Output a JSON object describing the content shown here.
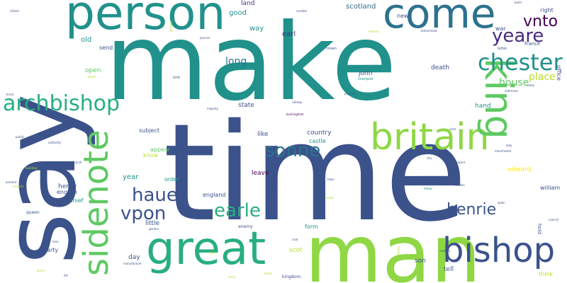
{
  "words": [
    {
      "key": "make",
      "text": "make",
      "color": "#21918c"
    },
    {
      "key": "time",
      "text": "time",
      "color": "#3b528b"
    },
    {
      "key": "say",
      "text": "say",
      "color": "#3b528b"
    },
    {
      "key": "man",
      "text": "man",
      "color": "#8fd744"
    },
    {
      "key": "person",
      "text": "person",
      "color": "#21918c"
    },
    {
      "key": "come",
      "text": "come",
      "color": "#2c728e"
    },
    {
      "key": "great",
      "text": "great",
      "color": "#28ae80"
    },
    {
      "key": "britain",
      "text": "britain",
      "color": "#8fd744"
    },
    {
      "key": "king",
      "text": "king",
      "color": "#5ec962"
    },
    {
      "key": "sidenote",
      "text": "sidenote",
      "color": "#5ec962"
    },
    {
      "key": "bishop",
      "text": "bishop",
      "color": "#3b528b"
    },
    {
      "key": "chester",
      "text": "chester",
      "color": "#21918c"
    },
    {
      "key": "archbishop",
      "text": "archbishop",
      "color": "#28ae80"
    },
    {
      "key": "yeare",
      "text": "yeare",
      "color": "#472d7b"
    },
    {
      "key": "vnto",
      "text": "vnto",
      "color": "#440154"
    },
    {
      "key": "sonne",
      "text": "sonne",
      "color": "#2c728e"
    },
    {
      "key": "haue",
      "text": "haue",
      "color": "#3b528b"
    },
    {
      "key": "vpon",
      "text": "vpon",
      "color": "#3b528b"
    },
    {
      "key": "earle",
      "text": "earle",
      "color": "#28ae80"
    },
    {
      "key": "henrie",
      "text": "henrie",
      "color": "#3b528b"
    },
    {
      "key": "house",
      "text": "house",
      "color": "#5ec962"
    },
    {
      "key": "place",
      "text": "place",
      "color": "#b5de2b"
    },
    {
      "key": "long",
      "text": "long",
      "color": "#2c728e"
    },
    {
      "key": "scotland",
      "text": "scotland",
      "color": "#31688e"
    },
    {
      "key": "way",
      "text": "way",
      "color": "#21918c"
    },
    {
      "key": "earl",
      "text": "earl",
      "color": "#472d7b"
    },
    {
      "key": "good",
      "text": "good",
      "color": "#21918c"
    },
    {
      "key": "land",
      "text": "land",
      "color": "#472d7b"
    },
    {
      "key": "old",
      "text": "old",
      "color": "#21918c"
    },
    {
      "key": "send",
      "text": "send",
      "color": "#3b528b"
    },
    {
      "key": "open",
      "text": "open",
      "color": "#5ec962"
    },
    {
      "key": "john",
      "text": "john",
      "color": "#3b528b"
    },
    {
      "key": "death",
      "text": "death",
      "color": "#3b528b"
    },
    {
      "key": "hand",
      "text": "hand",
      "color": "#21918c"
    },
    {
      "key": "state",
      "text": "state",
      "color": "#3b528b"
    },
    {
      "key": "country",
      "text": "country",
      "color": "#3b528b"
    },
    {
      "key": "like",
      "text": "like",
      "color": "#3b528b"
    },
    {
      "key": "castle",
      "text": "castle",
      "color": "#21918c"
    },
    {
      "key": "subject",
      "text": "subject",
      "color": "#3b528b"
    },
    {
      "key": "appear",
      "text": "appear",
      "color": "#5ec962"
    },
    {
      "key": "know",
      "text": "know",
      "color": "#b5de2b"
    },
    {
      "key": "year",
      "text": "year",
      "color": "#21918c"
    },
    {
      "key": "leave",
      "text": "leave",
      "color": "#440154"
    },
    {
      "key": "edward",
      "text": "edward",
      "color": "#fde725"
    },
    {
      "key": "henry",
      "text": "henry",
      "color": "#3b528b"
    },
    {
      "key": "english",
      "text": "english",
      "color": "#3b528b"
    },
    {
      "key": "england",
      "text": "england",
      "color": "#3b528b"
    },
    {
      "key": "chief",
      "text": "chief",
      "color": "#21918c"
    },
    {
      "key": "order",
      "text": "order",
      "color": "#21918c"
    },
    {
      "key": "little",
      "text": "little",
      "color": "#3b528b"
    },
    {
      "key": "form",
      "text": "form",
      "color": "#21918c"
    },
    {
      "key": "william",
      "text": "william",
      "color": "#3b528b"
    },
    {
      "key": "day",
      "text": "day",
      "color": "#3b528b"
    },
    {
      "key": "scot",
      "text": "scot",
      "color": "#b5de2b"
    },
    {
      "key": "son",
      "text": "son",
      "color": "#3b528b"
    },
    {
      "key": "tell",
      "text": "tell",
      "color": "#3b528b"
    },
    {
      "key": "think",
      "text": "think",
      "color": "#b5de2b"
    },
    {
      "key": "party",
      "text": "party",
      "color": "#3b528b"
    },
    {
      "key": "new",
      "text": "new",
      "color": "#3b528b"
    },
    {
      "key": "right",
      "text": "right",
      "color": "#3b528b"
    },
    {
      "key": "war",
      "text": "war",
      "color": "#3b528b"
    },
    {
      "key": "france",
      "text": "france",
      "color": "#3b528b"
    },
    {
      "key": "office",
      "text": "office",
      "color": "#3b528b"
    },
    {
      "key": "duke",
      "text": "duke",
      "color": "#3b528b"
    },
    {
      "key": "queen",
      "text": "queen",
      "color": "#3b528b"
    },
    {
      "key": "enemy",
      "text": "enemy",
      "color": "#3b528b"
    },
    {
      "key": "hold",
      "text": "hold",
      "color": "#3b528b"
    },
    {
      "key": "kingdom",
      "text": "kingdom",
      "color": "#3b528b"
    },
    {
      "key": "crown",
      "text": "crown",
      "color": "#3b528b"
    },
    {
      "key": "letter",
      "text": "letter",
      "color": "#3b528b"
    },
    {
      "key": "lord",
      "text": "lord",
      "color": "#3b528b"
    },
    {
      "key": "prince",
      "text": "prince",
      "color": "#b5de2b"
    },
    {
      "key": "liverpool",
      "text": "liverpool",
      "color": "#21918c"
    },
    {
      "key": "majesty",
      "text": "majesty",
      "color": "#3b528b"
    },
    {
      "key": "authority",
      "text": "authority",
      "color": "#3b528b"
    },
    {
      "key": "baron",
      "text": "baron",
      "color": "#b5de2b"
    },
    {
      "key": "birkenhead",
      "text": "birkenhead",
      "color": "#3b528b"
    },
    {
      "key": "citizen",
      "text": "citizen",
      "color": "#3b528b"
    },
    {
      "key": "journal",
      "text": "journal",
      "color": "#3b528b"
    },
    {
      "key": "railway",
      "text": "railway",
      "color": "#3b528b"
    },
    {
      "key": "buckingham",
      "text": "buckingham",
      "color": "#440154"
    },
    {
      "key": "prisoner",
      "text": "prisoner",
      "color": "#3b528b"
    },
    {
      "key": "build",
      "text": "build",
      "color": "#3b528b"
    },
    {
      "key": "number",
      "text": "number",
      "color": "#3b528b"
    },
    {
      "key": "city",
      "text": "city",
      "color": "#3b528b"
    },
    {
      "key": "road",
      "text": "road",
      "color": "#3b528b"
    },
    {
      "key": "army",
      "text": "army",
      "color": "#b5de2b"
    },
    {
      "key": "life",
      "text": "life",
      "color": "#3b528b"
    },
    {
      "key": "green",
      "text": "green",
      "color": "#b5de2b"
    },
    {
      "key": "alfred",
      "text": "alfred",
      "color": "#b5de2b"
    },
    {
      "key": "manufacture",
      "text": "manufacture",
      "color": "#3b528b"
    },
    {
      "key": "century",
      "text": "century",
      "color": "#3b528b"
    },
    {
      "key": "coal",
      "text": "coal",
      "color": "#3b528b"
    },
    {
      "key": "spain",
      "text": "spain",
      "color": "#3b528b"
    },
    {
      "key": "ireland",
      "text": "ireland",
      "color": "#b5de2b"
    },
    {
      "key": "follow",
      "text": "follow",
      "color": "#21918c"
    },
    {
      "key": "london",
      "text": "london",
      "color": "#3b528b"
    },
    {
      "key": "report",
      "text": "report",
      "color": "#3b528b"
    },
    {
      "key": "manchester",
      "text": "manchester",
      "color": "#3b528b"
    },
    {
      "key": "lady",
      "text": "lady",
      "color": "#3b528b"
    },
    {
      "key": "alderman",
      "text": "alderman",
      "color": "#3b528b"
    },
    {
      "key": "early",
      "text": "early",
      "color": "#3b528b"
    },
    {
      "key": "council",
      "text": "council",
      "color": "#3b528b"
    },
    {
      "key": "church",
      "text": "church",
      "color": "#3b528b"
    },
    {
      "key": "lane",
      "text": "lane",
      "color": "#3b528b"
    },
    {
      "key": "hall",
      "text": "hall",
      "color": "#b5de2b"
    },
    {
      "key": "public",
      "text": "public",
      "color": "#3b528b"
    },
    {
      "key": "building",
      "text": "building",
      "color": "#b5de2b"
    },
    {
      "key": "present",
      "text": "present",
      "color": "#3b528b"
    },
    {
      "key": "christ",
      "text": "christ",
      "color": "#3b528b"
    },
    {
      "key": "victoria",
      "text": "victoria",
      "color": "#b5de2b"
    },
    {
      "key": "garden",
      "text": "garden",
      "color": "#3b528b"
    },
    {
      "key": "write",
      "text": "write",
      "color": "#3b528b"
    },
    {
      "key": "water",
      "text": "water",
      "color": "#b5de2b"
    },
    {
      "key": "town",
      "text": "town",
      "color": "#3b528b"
    },
    {
      "key": "mersey",
      "text": "mersey",
      "color": "#b5de2b"
    }
  ]
}
